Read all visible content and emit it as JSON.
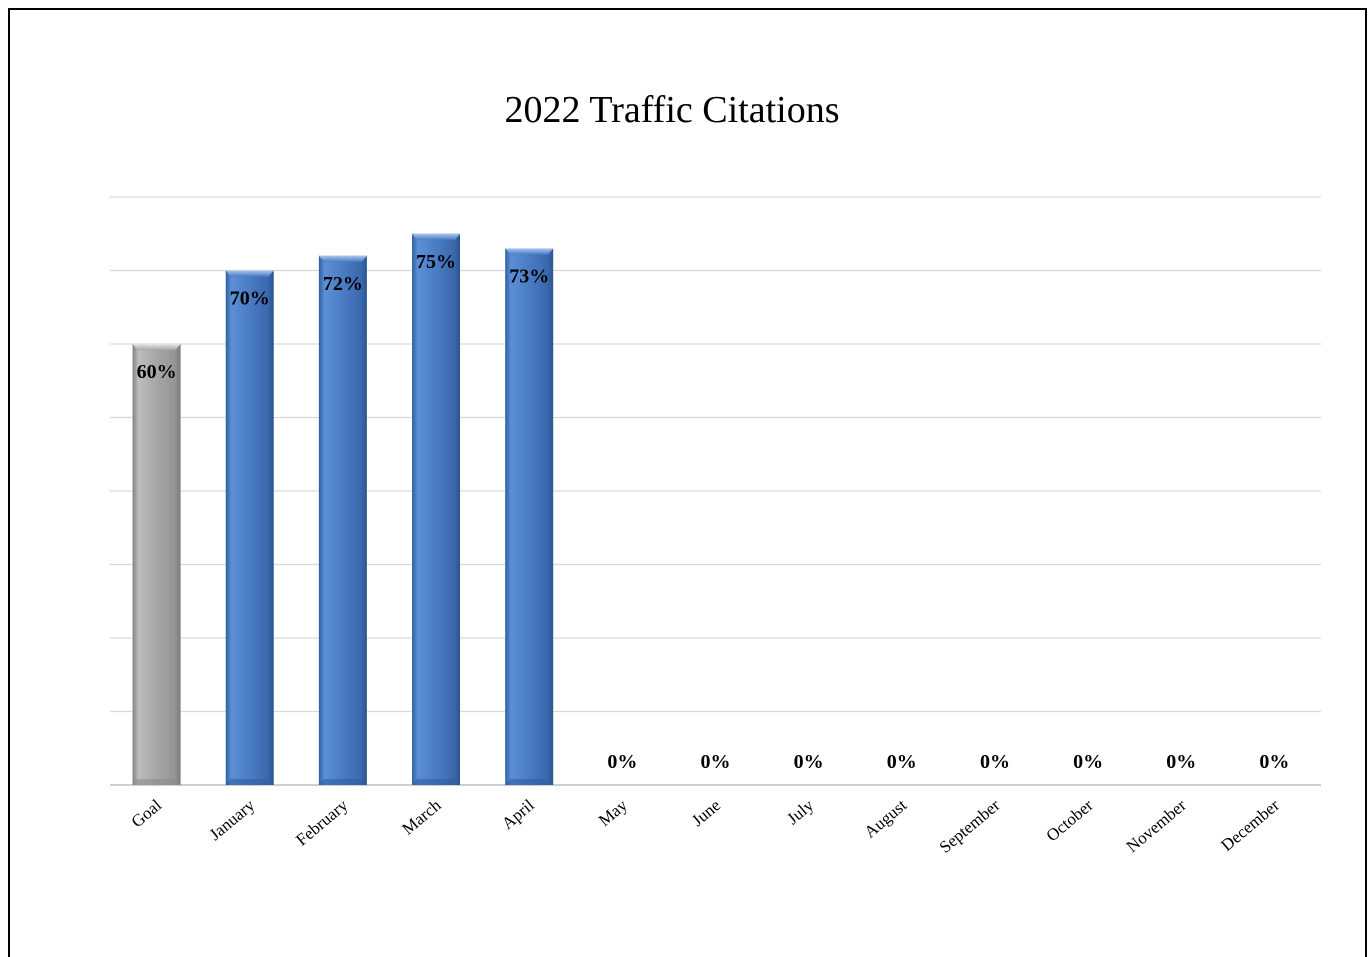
{
  "chart_data": {
    "type": "bar",
    "title": "2022 Traffic Citations",
    "xlabel": "",
    "ylabel": "",
    "ylim": [
      0,
      80
    ],
    "ytick_step": 10,
    "grid": true,
    "categories": [
      "Goal",
      "January",
      "February",
      "March",
      "April",
      "May",
      "June",
      "July",
      "August",
      "September",
      "October",
      "November",
      "December"
    ],
    "values": [
      60,
      70,
      72,
      75,
      73,
      0,
      0,
      0,
      0,
      0,
      0,
      0,
      0
    ],
    "data_labels": [
      "60%",
      "70%",
      "72%",
      "75%",
      "73%",
      "0%",
      "0%",
      "0%",
      "0%",
      "0%",
      "0%",
      "0%",
      "0%"
    ],
    "colors": {
      "goal": "#a6a6a6",
      "month": "#4a7cc4",
      "gridline": "#d9d9d9",
      "axis": "#bfbfbf"
    }
  }
}
